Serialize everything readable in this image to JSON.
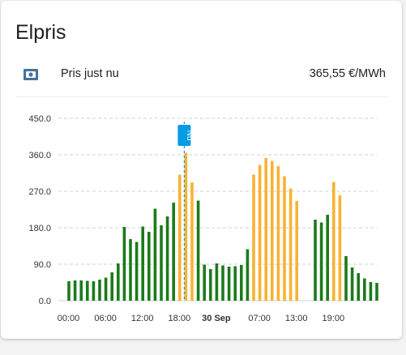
{
  "card": {
    "title": "Elpris",
    "current_price": {
      "label": "Pris just nu",
      "value": "365,55 €/MWh",
      "icon": "cash-icon"
    }
  },
  "colors": {
    "green": "#1b7a1b",
    "orange": "#f9b233",
    "now_marker": "#039be5",
    "gridline": "#d0d0d0"
  },
  "chart_data": {
    "type": "bar",
    "grid": true,
    "ylim": [
      0,
      450
    ],
    "y_ticks": [
      "450.0",
      "360.0",
      "270.0",
      "180.0",
      "90.0",
      "0.0"
    ],
    "x_ticks": [
      {
        "label": "00:00",
        "hour": 0,
        "bold": false
      },
      {
        "label": "06:00",
        "hour": 6,
        "bold": false
      },
      {
        "label": "12:00",
        "hour": 12,
        "bold": false
      },
      {
        "label": "18:00",
        "hour": 18,
        "bold": false
      },
      {
        "label": "30 Sep",
        "hour": 24,
        "bold": true
      },
      {
        "label": "07:00",
        "hour": 31,
        "bold": false
      },
      {
        "label": "13:00",
        "hour": 37,
        "bold": false
      },
      {
        "label": "19:00",
        "hour": 43,
        "bold": false
      }
    ],
    "now_marker": {
      "label": "Nu",
      "hour": 19
    },
    "series": [
      {
        "color": "green",
        "values": [
          48,
          50,
          50,
          49,
          48,
          52,
          57,
          70,
          92,
          182,
          152,
          145,
          183,
          170,
          227,
          186,
          208,
          242,
          0,
          0,
          0,
          247,
          89,
          78,
          92,
          87,
          84,
          85,
          88,
          127,
          0,
          0,
          0,
          0,
          0,
          0,
          0,
          0,
          0,
          0,
          200,
          193,
          212,
          0,
          0,
          110,
          82,
          68,
          55,
          46,
          44
        ]
      },
      {
        "color": "orange",
        "values": [
          0,
          0,
          0,
          0,
          0,
          0,
          0,
          0,
          0,
          0,
          0,
          0,
          0,
          0,
          0,
          0,
          0,
          0,
          311,
          365,
          292,
          0,
          0,
          0,
          0,
          0,
          0,
          0,
          0,
          0,
          311,
          335,
          352,
          345,
          332,
          307,
          277,
          246,
          0,
          0,
          0,
          0,
          0,
          293,
          260,
          0,
          0,
          0,
          0,
          0,
          0
        ]
      }
    ]
  }
}
